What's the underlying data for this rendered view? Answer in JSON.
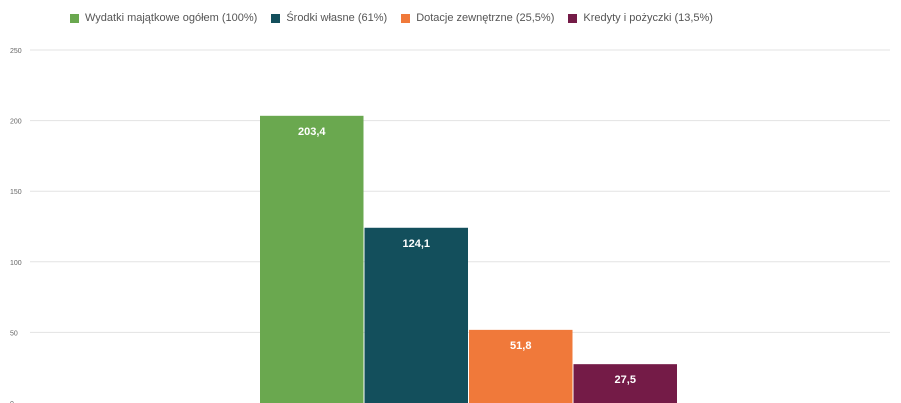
{
  "chart_data": {
    "type": "bar",
    "title": "",
    "xlabel": "",
    "ylabel": "",
    "ylim": [
      0,
      250
    ],
    "yticks": [
      0,
      50,
      100,
      150,
      200,
      250
    ],
    "ytick_labels": [
      "0",
      "50",
      "100",
      "150",
      "200",
      "250"
    ],
    "grid": true,
    "legend_position": "top",
    "series": [
      {
        "name": "Wydatki majątkowe ogółem (100%)",
        "value": 203.4,
        "label": "203,4",
        "color": "#6aa84f"
      },
      {
        "name": "Środki własne (61%)",
        "value": 124.1,
        "label": "124,1",
        "color": "#134f5c"
      },
      {
        "name": "Dotacje zewnętrzne (25,5%)",
        "value": 51.8,
        "label": "51,8",
        "color": "#f0793a"
      },
      {
        "name": "Kredyty i pożyczki (13,5%)",
        "value": 27.5,
        "label": "27,5",
        "color": "#741b47"
      }
    ]
  }
}
